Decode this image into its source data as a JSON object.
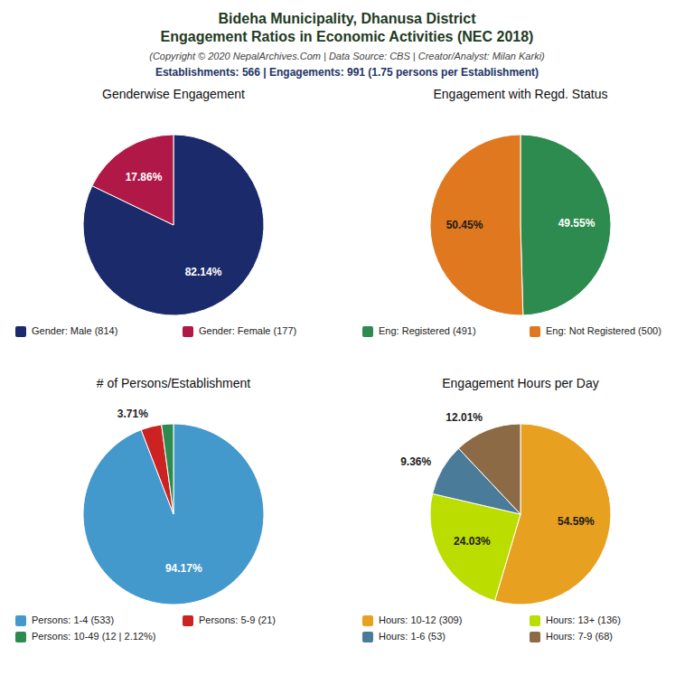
{
  "title": [
    "Bideha Municipality, Dhanusa District",
    "Engagement Ratios in Economic Activities (NEC 2018)"
  ],
  "subtitle": "(Copyright © 2020 NepalArchives.Com | Data Source: CBS | Creator/Analyst: Milan Karki)",
  "annotations": [
    "Establishments: 566 | Engagements: 991 (1.75 persons per Establishment)"
  ],
  "chart_data": [
    {
      "type": "pie",
      "title": "Genderwise Engagement",
      "categories": [
        "Gender: Male (814)",
        "Gender: Female (177)"
      ],
      "values": [
        82.14,
        17.86
      ],
      "value_labels": [
        "82.14%",
        "17.86%"
      ],
      "colors": [
        "#1B2A6B",
        "#B01848"
      ],
      "data_labels": true,
      "legend": "bottom"
    },
    {
      "type": "pie",
      "title": "Engagement with Regd. Status",
      "categories": [
        "Eng: Registered (491)",
        "Eng: Not Registered (500)"
      ],
      "values": [
        49.55,
        50.45
      ],
      "value_labels": [
        "49.55%",
        "50.45%"
      ],
      "colors": [
        "#2E8B50",
        "#E07820"
      ],
      "data_labels": true,
      "legend": "bottom"
    },
    {
      "type": "pie",
      "title": "# of Persons/Establishment",
      "categories": [
        "Persons: 1-4 (533)",
        "Persons: 5-9 (21)",
        "Persons: 10-49 (12 | 2.12%)"
      ],
      "values": [
        94.17,
        3.71,
        2.12
      ],
      "value_labels": [
        "94.17%",
        "3.71%",
        null
      ],
      "colors": [
        "#4499CC",
        "#CC2222",
        "#2E8B50"
      ],
      "data_labels": true,
      "legend": "bottom"
    },
    {
      "type": "pie",
      "title": "Engagement Hours per Day",
      "categories": [
        "Hours: 10-12 (309)",
        "Hours: 13+ (136)",
        "Hours: 1-6 (53)",
        "Hours: 7-9 (68)"
      ],
      "values": [
        54.59,
        24.03,
        9.36,
        12.01
      ],
      "value_labels": [
        "54.59%",
        "24.03%",
        "9.36%",
        "12.01%"
      ],
      "colors": [
        "#E8A020",
        "#BBDD00",
        "#4A7C9A",
        "#8B6A45"
      ],
      "data_labels": true,
      "legend": "bottom"
    }
  ]
}
